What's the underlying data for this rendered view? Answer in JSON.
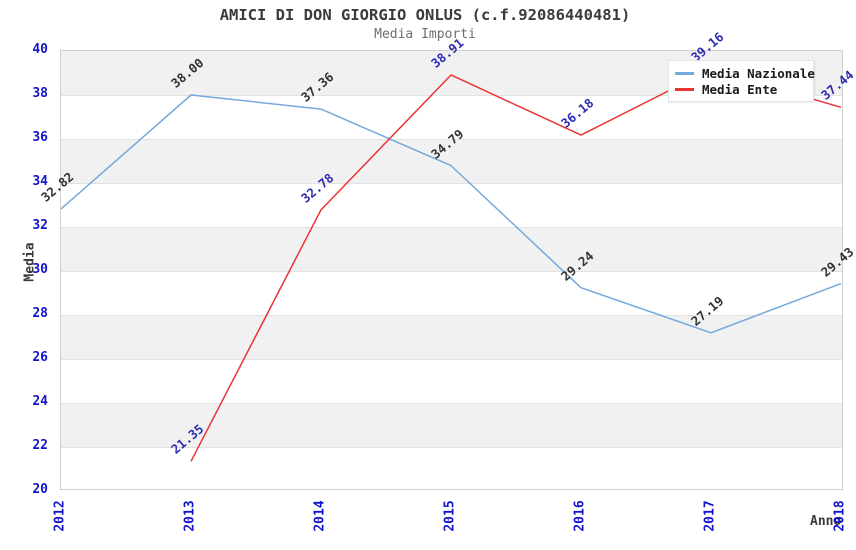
{
  "title": "AMICI DI DON GIORGIO ONLUS (c.f.92086440481)",
  "subtitle": "Media Importi",
  "axes": {
    "ylabel": "Media",
    "xlabel": "Anno"
  },
  "legend": [
    {
      "name": "Media Nazionale",
      "color": "#74a9dc"
    },
    {
      "name": "Media Ente",
      "color": "#e93434"
    }
  ],
  "colors": {
    "tick_label": "#1414cc",
    "nazionale_line": "#74a9dc",
    "ente_line": "#e93434",
    "nazionale_point_label": "#333333",
    "ente_point_label": "#2d2db4",
    "band_gray": "#f1f1f1",
    "axis_frame": "#cfcfcf"
  },
  "chart_data": {
    "type": "line",
    "title": "AMICI DI DON GIORGIO ONLUS (c.f.92086440481)",
    "subtitle": "Media Importi",
    "xlabel": "Anno",
    "ylabel": "Media",
    "x": [
      2012,
      2013,
      2014,
      2015,
      2016,
      2017,
      2018
    ],
    "ylim": [
      20,
      40
    ],
    "ytick_step": 2,
    "grid": "horizontal-bands",
    "legend_position": "upper right",
    "series": [
      {
        "name": "Media Nazionale",
        "color": "#74a9dc",
        "label_color": "#333333",
        "points": [
          {
            "x": 2012,
            "y": 32.82,
            "label": "32.82"
          },
          {
            "x": 2013,
            "y": 38.0,
            "label": "38.00"
          },
          {
            "x": 2014,
            "y": 37.36,
            "label": "37.36"
          },
          {
            "x": 2015,
            "y": 34.79,
            "label": "34.79"
          },
          {
            "x": 2016,
            "y": 29.24,
            "label": "29.24"
          },
          {
            "x": 2017,
            "y": 27.19,
            "label": "27.19"
          },
          {
            "x": 2018,
            "y": 29.43,
            "label": "29.43"
          }
        ]
      },
      {
        "name": "Media Ente",
        "color": "#e93434",
        "label_color": "#2d2db4",
        "points": [
          {
            "x": 2013,
            "y": 21.35,
            "label": "21.35"
          },
          {
            "x": 2014,
            "y": 32.78,
            "label": "32.78"
          },
          {
            "x": 2015,
            "y": 38.91,
            "label": "38.91"
          },
          {
            "x": 2016,
            "y": 36.18,
            "label": "36.18"
          },
          {
            "x": 2017,
            "y": 39.16,
            "label": "39.16"
          },
          {
            "x": 2018,
            "y": 37.44,
            "label": "37.44"
          }
        ]
      }
    ]
  }
}
